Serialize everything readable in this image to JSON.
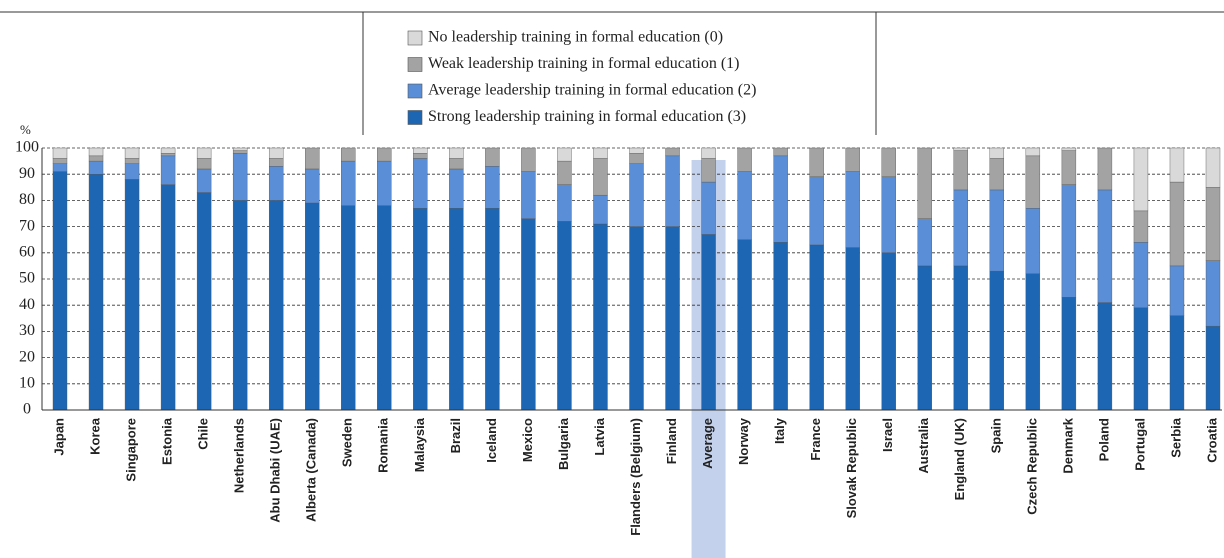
{
  "chart_data": {
    "type": "stacked_bar",
    "y_label": "%",
    "categories": [
      "Japan",
      "Korea",
      "Singapore",
      "Estonia",
      "Chile",
      "Netherlands",
      "Abu Dhabi (UAE)",
      "Alberta (Canada)",
      "Sweden",
      "Romania",
      "Malaysia",
      "Brazil",
      "Iceland",
      "Mexico",
      "Bulgaria",
      "Latvia",
      "Flanders (Belgium)",
      "Finland",
      "Average",
      "Norway",
      "Italy",
      "France",
      "Slovak Republic",
      "Israel",
      "Australia",
      "England (UK)",
      "Spain",
      "Czech Republic",
      "Denmark",
      "Poland",
      "Portugal",
      "Serbia",
      "Croatia"
    ],
    "highlight": "Average",
    "series": [
      {
        "name": "Strong leadership training in formal education (3)",
        "color": "#1c66b4",
        "values": [
          91,
          90,
          88,
          86,
          83,
          80,
          80,
          79,
          78,
          78,
          77,
          77,
          77,
          73,
          72,
          71,
          70,
          70,
          67,
          65,
          64,
          63,
          62,
          60,
          55,
          55,
          53,
          52,
          43,
          41,
          39,
          36,
          32
        ]
      },
      {
        "name": "Average leadership training in formal education (2)",
        "color": "#5a8ed6",
        "values": [
          3,
          5,
          6,
          11,
          9,
          18,
          13,
          13,
          17,
          17,
          19,
          15,
          16,
          18,
          14,
          11,
          24,
          27,
          20,
          26,
          33,
          26,
          29,
          29,
          18,
          29,
          31,
          25,
          43,
          43,
          25,
          19,
          25
        ]
      },
      {
        "name": "Weak leadership training in formal education (1)",
        "color": "#a3a3a3",
        "values": [
          2,
          2,
          2,
          1,
          4,
          1,
          3,
          8,
          5,
          5,
          2,
          4,
          7,
          9,
          9,
          14,
          4,
          3,
          9,
          9,
          3,
          11,
          9,
          11,
          27,
          15,
          12,
          20,
          13,
          16,
          12,
          32,
          28
        ]
      },
      {
        "name": "No leadership training in formal education (0)",
        "color": "#d9d9d9",
        "values": [
          4,
          3,
          4,
          2,
          4,
          1,
          4,
          0,
          0,
          0,
          2,
          4,
          0,
          0,
          5,
          4,
          2,
          0,
          4,
          0,
          0,
          0,
          0,
          0,
          0,
          1,
          4,
          3,
          1,
          0,
          24,
          13,
          15
        ]
      }
    ],
    "ylim": [
      0,
      100
    ],
    "yticks": [
      0,
      10,
      20,
      30,
      40,
      50,
      60,
      70,
      80,
      90,
      100
    ],
    "grid": true
  }
}
